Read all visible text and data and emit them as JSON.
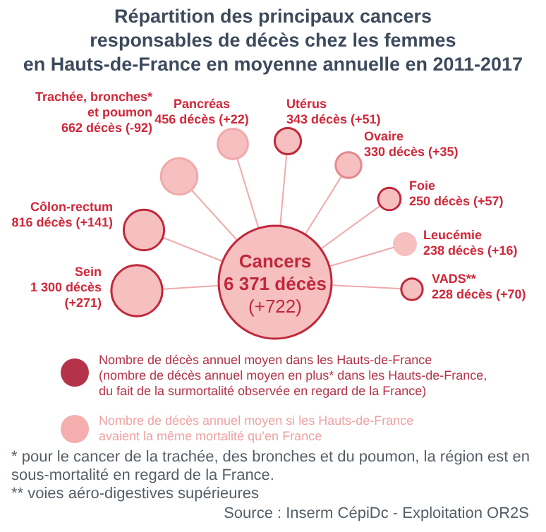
{
  "chart_data": {
    "type": "other",
    "title": "Répartition des principaux cancers\nresponsables de décès chez les femmes\nen Hauts-de-France en moyenne annuelle en 2011-2017",
    "categories": [
      "Cancers",
      "Sein",
      "Côlon-rectum",
      "Trachée, bronches*\net poumon",
      "Pancréas",
      "Utérus",
      "Ovaire",
      "Foie",
      "Leucémie",
      "VADS**"
    ],
    "values": [
      6371,
      1300,
      816,
      662,
      456,
      343,
      330,
      250,
      238,
      228
    ],
    "value_labels": [
      "6 371 décès\n(+722)",
      "1 300 décès\n(+271)",
      "816 décès (+141)",
      "662 décès (-92)",
      "456 décès (+22)",
      "343 décès (+51)",
      "330 décès (+35)",
      "250 décès (+57)",
      "238 décès (+16)",
      "228 décès (+70)"
    ],
    "color": "#f6bfc0",
    "colors": [
      "#c0283a",
      "#c0283a",
      "#c0283a",
      "#f2a9ab",
      "#f2a9ab",
      "#c0283a",
      "#e58a90",
      "#c0283a",
      "#f6bfc0",
      "#c0283a"
    ],
    "annotations": [
      "Nombre de décès annuel moyen dans les Hauts-de-France\n(nombre de décès annuel moyen en plus* dans les Hauts-de-France,\ndu fait de la surmortalité observée en regard de la France)",
      "Nombre de décès annuel moyen si les Hauts-de-France\navaient la même mortalité qu’en France",
      "* pour le cancer de la trachée, des bronches et du poumon, la région est en sous-mortalité en regard de la France.\n** voies aéro-digestives supérieures",
      "Source :  Inserm CépiDc - Exploitation OR2S"
    ]
  }
}
